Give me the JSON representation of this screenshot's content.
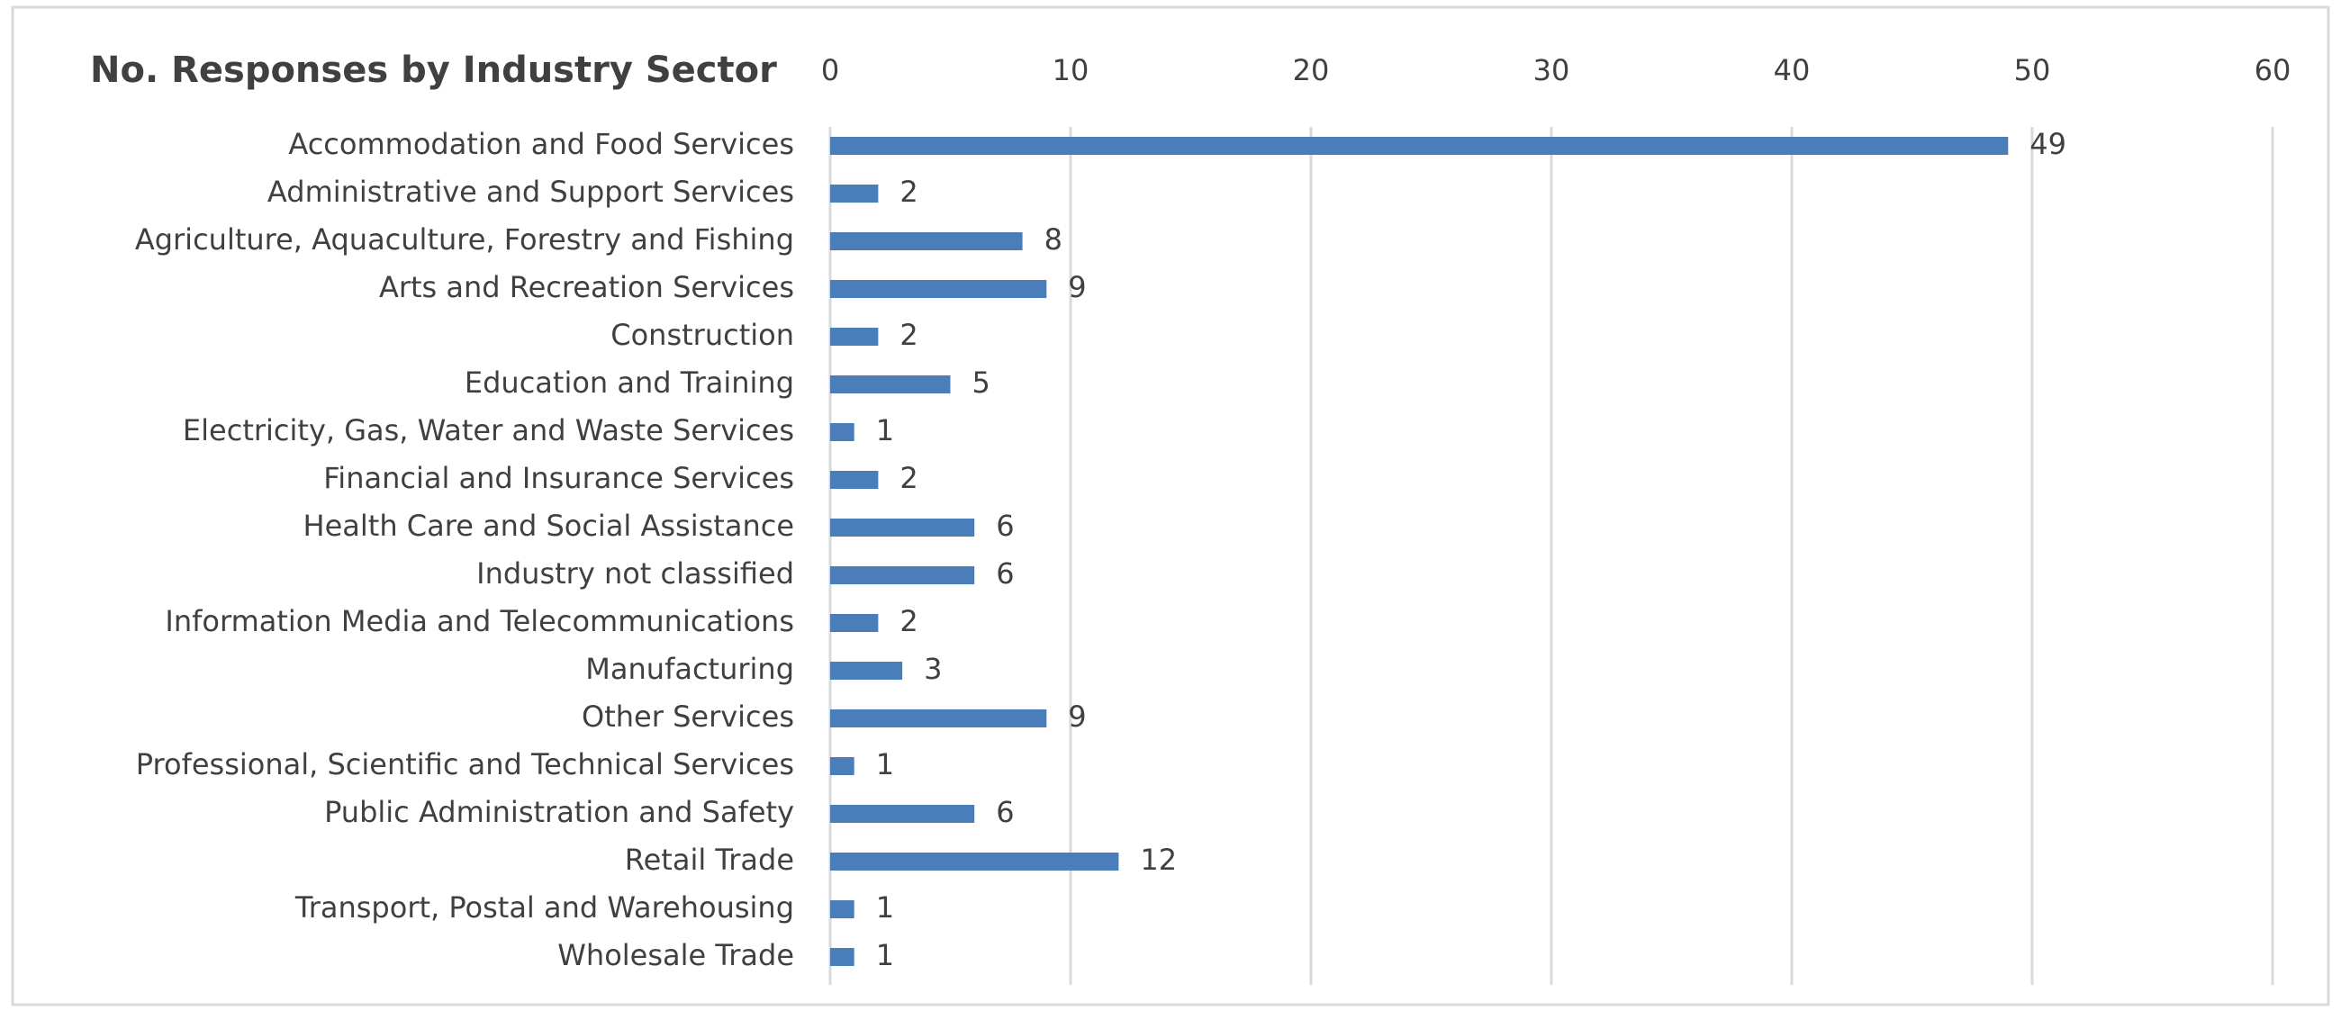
{
  "chart_data": {
    "type": "barh",
    "title": "No. Responses by Industry Sector",
    "categories": [
      "Accommodation and Food Services",
      "Administrative and Support Services",
      "Agriculture, Aquaculture, Forestry and Fishing",
      "Arts and Recreation Services",
      "Construction",
      "Education and Training",
      "Electricity, Gas, Water and Waste Services",
      "Financial and Insurance Services",
      "Health Care and Social Assistance",
      "Industry not classified",
      "Information Media and Telecommunications",
      "Manufacturing",
      "Other Services",
      "Professional, Scientific and Technical Services",
      "Public Administration and Safety",
      "Retail Trade",
      "Transport, Postal and Warehousing",
      "Wholesale Trade"
    ],
    "values": [
      49,
      2,
      8,
      9,
      2,
      5,
      1,
      2,
      6,
      6,
      2,
      3,
      9,
      1,
      6,
      12,
      1,
      1
    ],
    "color": "#4a7ebb",
    "xlim": [
      0,
      60
    ],
    "xticks": [
      0,
      10,
      20,
      30,
      40,
      50,
      60
    ],
    "grid": true
  }
}
